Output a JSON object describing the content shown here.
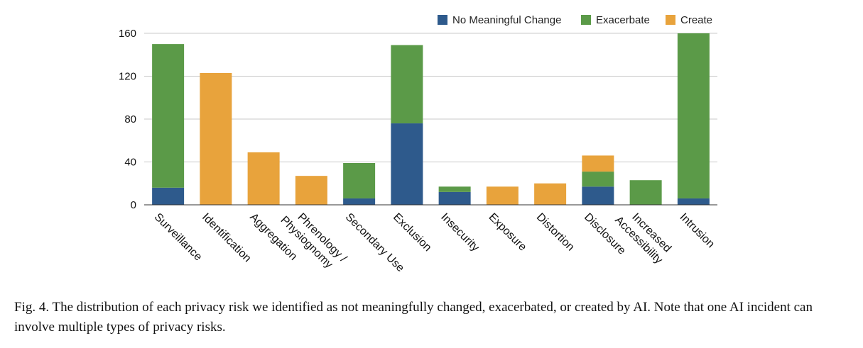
{
  "chart_data": {
    "type": "bar",
    "stacked": true,
    "categories": [
      "Surveillance",
      "Identification",
      "Aggregation",
      "Phrenology / Physiognomy",
      "Secondary Use",
      "Exclusion",
      "Insecurity",
      "Exposure",
      "Distortion",
      "Disclosure",
      "Increased Accessibility",
      "Intrusion"
    ],
    "series": [
      {
        "name": "No Meaningful Change",
        "color": "#2E5A8C",
        "values": [
          16,
          0,
          0,
          0,
          6,
          76,
          12,
          0,
          0,
          17,
          0,
          6
        ]
      },
      {
        "name": "Exacerbate",
        "color": "#5B9A48",
        "values": [
          134,
          0,
          0,
          0,
          33,
          73,
          5,
          0,
          0,
          14,
          23,
          154
        ]
      },
      {
        "name": "Create",
        "color": "#E8A33C",
        "values": [
          0,
          123,
          49,
          27,
          0,
          0,
          0,
          17,
          20,
          15,
          0,
          0
        ]
      }
    ],
    "y_ticks": [
      "0",
      "40",
      "80",
      "120",
      "160"
    ],
    "ylim": [
      0,
      160
    ],
    "grid": true,
    "legend": "top-right"
  },
  "caption": "Fig. 4.  The distribution of each privacy risk we identified as not meaningfully changed, exacerbated, or created by AI. Note that one AI incident can involve multiple types of privacy risks."
}
